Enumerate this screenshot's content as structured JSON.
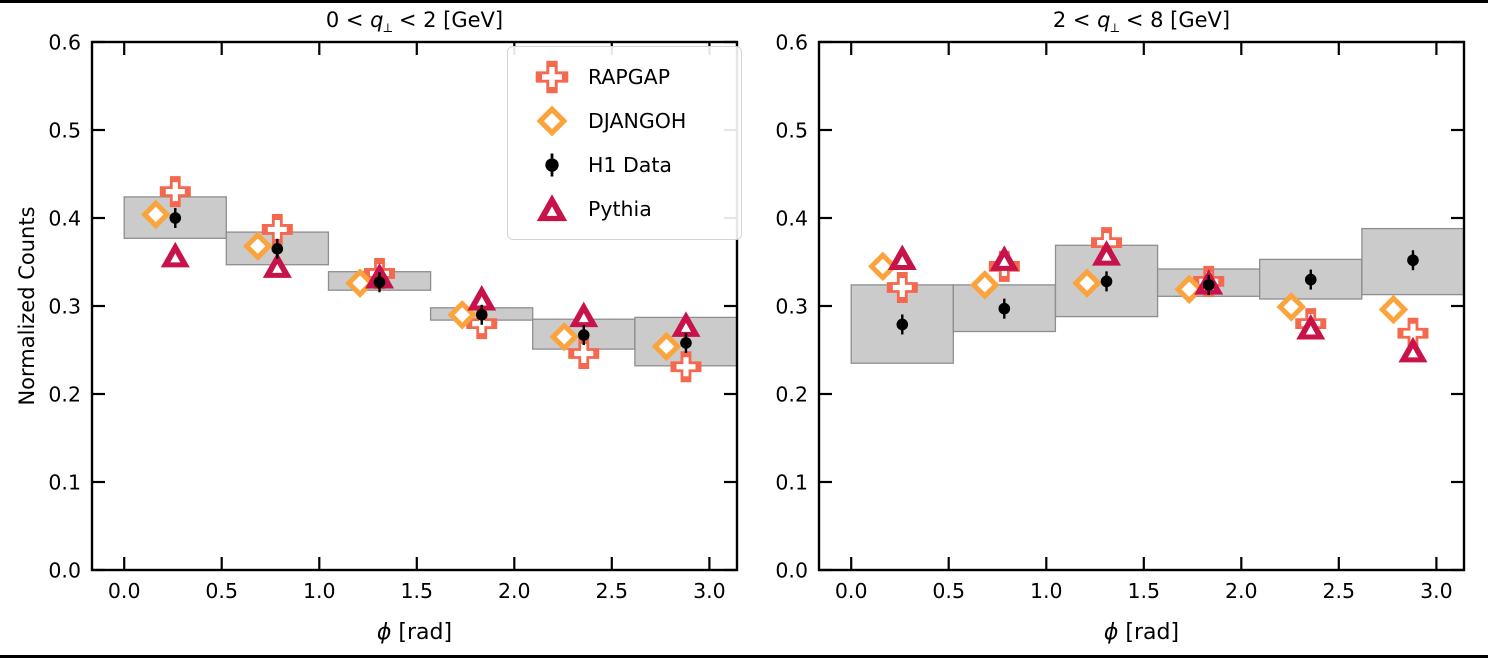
{
  "figure": {
    "background": "#FFFFFF",
    "frame_color": "#000000",
    "ylabel": "Normalized Counts",
    "colors": {
      "rapgap": "#F4684E",
      "djangoh": "#FBA33C",
      "h1_data": "#000000",
      "pythia": "#C8124A",
      "sys_box_fill": "#CBCBCB",
      "sys_box_edge": "#8E8E8E",
      "spine": "#000000"
    },
    "legend": {
      "items": [
        {
          "label": "RAPGAP",
          "marker": "filled-plus",
          "color": "#F4684E"
        },
        {
          "label": "DJANGOH",
          "marker": "open-diamond",
          "color": "#FBA33C"
        },
        {
          "label": "H1 Data",
          "marker": "circle-errorbar",
          "color": "#000000"
        },
        {
          "label": "Pythia",
          "marker": "filled-triangle",
          "color": "#C8124A"
        }
      ]
    }
  },
  "chart_data": [
    {
      "type": "scatter",
      "title": "0 < q⟂ < 2 [GeV]",
      "title_parts": {
        "prefix": "0 < ",
        "symbol": "q",
        "subscript": "⟂",
        "suffix": " < 2 [GeV]"
      },
      "xlabel": "ϕ [rad]",
      "xlabel_parts": {
        "symbol": "ϕ",
        "suffix": " [rad]"
      },
      "ylabel": "Normalized Counts",
      "xlim": [
        -0.165,
        3.1416
      ],
      "ylim": [
        0.0,
        0.6
      ],
      "xticks": [
        0.0,
        0.5,
        1.0,
        1.5,
        2.0,
        2.5,
        3.0
      ],
      "yticks": [
        0.0,
        0.1,
        0.2,
        0.3,
        0.4,
        0.5,
        0.6
      ],
      "grid": false,
      "phi_centers": [
        0.262,
        0.785,
        1.309,
        1.833,
        2.356,
        2.88
      ],
      "bin_edges": [
        0.0,
        0.5236,
        1.0472,
        1.5708,
        2.0944,
        2.618,
        3.1416
      ],
      "series": [
        {
          "name": "RAPGAP",
          "marker": "filled-plus",
          "color": "#F4684E",
          "x_offset": 0.0,
          "values": [
            0.43,
            0.387,
            0.337,
            0.28,
            0.246,
            0.231
          ]
        },
        {
          "name": "DJANGOH",
          "marker": "open-diamond",
          "color": "#FBA33C",
          "x_offset": -0.1,
          "values": [
            0.404,
            0.368,
            0.326,
            0.29,
            0.265,
            0.254
          ]
        },
        {
          "name": "H1 Data",
          "marker": "circle-errorbar",
          "color": "#000000",
          "x_offset": 0.0,
          "values": [
            0.4,
            0.365,
            0.327,
            0.29,
            0.267,
            0.258
          ],
          "yerr": [
            0.007,
            0.007,
            0.007,
            0.007,
            0.007,
            0.007
          ]
        },
        {
          "name": "Pythia",
          "marker": "filled-triangle",
          "color": "#C8124A",
          "x_offset": 0.0,
          "values": [
            0.357,
            0.345,
            0.333,
            0.308,
            0.289,
            0.278
          ]
        }
      ],
      "sys_uncertainty_boxes": [
        {
          "y_low": 0.377,
          "y_high": 0.424
        },
        {
          "y_low": 0.347,
          "y_high": 0.384
        },
        {
          "y_low": 0.318,
          "y_high": 0.339
        },
        {
          "y_low": 0.284,
          "y_high": 0.298
        },
        {
          "y_low": 0.251,
          "y_high": 0.285
        },
        {
          "y_low": 0.232,
          "y_high": 0.287
        }
      ]
    },
    {
      "type": "scatter",
      "title": "2 < q⟂ < 8 [GeV]",
      "title_parts": {
        "prefix": "2 < ",
        "symbol": "q",
        "subscript": "⟂",
        "suffix": " < 8 [GeV]"
      },
      "xlabel": "ϕ [rad]",
      "xlabel_parts": {
        "symbol": "ϕ",
        "suffix": " [rad]"
      },
      "ylabel": "",
      "xlim": [
        -0.165,
        3.1416
      ],
      "ylim": [
        0.0,
        0.6
      ],
      "xticks": [
        0.0,
        0.5,
        1.0,
        1.5,
        2.0,
        2.5,
        3.0
      ],
      "yticks": [
        0.0,
        0.1,
        0.2,
        0.3,
        0.4,
        0.5,
        0.6
      ],
      "grid": false,
      "phi_centers": [
        0.262,
        0.785,
        1.309,
        1.833,
        2.356,
        2.88
      ],
      "bin_edges": [
        0.0,
        0.5236,
        1.0472,
        1.5708,
        2.0944,
        2.618,
        3.1416
      ],
      "series": [
        {
          "name": "RAPGAP",
          "marker": "filled-plus",
          "color": "#F4684E",
          "x_offset": 0.0,
          "values": [
            0.321,
            0.345,
            0.372,
            0.328,
            0.28,
            0.269
          ]
        },
        {
          "name": "DJANGOH",
          "marker": "open-diamond",
          "color": "#FBA33C",
          "x_offset": -0.1,
          "values": [
            0.345,
            0.324,
            0.326,
            0.319,
            0.299,
            0.296
          ]
        },
        {
          "name": "H1 Data",
          "marker": "circle-errorbar",
          "color": "#000000",
          "x_offset": 0.0,
          "values": [
            0.279,
            0.297,
            0.328,
            0.324,
            0.33,
            0.352
          ],
          "yerr": [
            0.007,
            0.007,
            0.007,
            0.007,
            0.007,
            0.007
          ]
        },
        {
          "name": "Pythia",
          "marker": "filled-triangle",
          "color": "#C8124A",
          "x_offset": 0.0,
          "values": [
            0.354,
            0.353,
            0.359,
            0.326,
            0.275,
            0.249
          ]
        }
      ],
      "sys_uncertainty_boxes": [
        {
          "y_low": 0.235,
          "y_high": 0.324
        },
        {
          "y_low": 0.271,
          "y_high": 0.324
        },
        {
          "y_low": 0.288,
          "y_high": 0.369
        },
        {
          "y_low": 0.311,
          "y_high": 0.342
        },
        {
          "y_low": 0.308,
          "y_high": 0.353
        },
        {
          "y_low": 0.313,
          "y_high": 0.388
        }
      ]
    }
  ]
}
